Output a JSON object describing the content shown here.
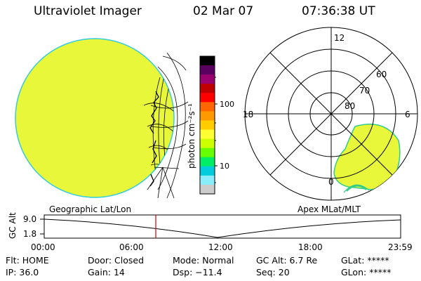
{
  "header": {
    "instrument": "Ultraviolet Imager",
    "date": "02 Mar 07",
    "time": "07:36:38 UT"
  },
  "colorbar": {
    "label": "photon cm⁻²s⁻¹",
    "ticks": [
      "100",
      "10"
    ],
    "colors": [
      "#000000",
      "#5a0060",
      "#9a0070",
      "#c00000",
      "#ff0000",
      "#ff6600",
      "#ff9900",
      "#ffcc00",
      "#ffff33",
      "#ccff00",
      "#66ff00",
      "#00ee66",
      "#00ccdd",
      "#88eeff",
      "#cccccc"
    ]
  },
  "polar_plot": {
    "labels": {
      "top": "12",
      "left": "18",
      "right": "6",
      "bottom": "0"
    },
    "lat_labels": [
      "60",
      "70",
      "80"
    ]
  },
  "panels": {
    "left_caption": "Geographic Lat/Lon",
    "right_caption": "Apex MLat/MLT"
  },
  "altitude_plot": {
    "axis_label": "GC Alt",
    "y_ticks": [
      "9.0",
      "1.8"
    ],
    "x_ticks": [
      "00:00",
      "06:00",
      "12:00",
      "18:00",
      "23:59"
    ]
  },
  "status": {
    "row1": [
      {
        "label": "Flt:",
        "value": "HOME"
      },
      {
        "label": "Door:",
        "value": "Closed"
      },
      {
        "label": "Mode:",
        "value": "Normal"
      },
      {
        "label": "GC Alt:",
        "value": "6.7 Re"
      },
      {
        "label": "GLat:",
        "value": "*****"
      }
    ],
    "row2": [
      {
        "label": "IP:",
        "value": "36.0"
      },
      {
        "label": "Gain:",
        "value": "14"
      },
      {
        "label": "Dsp:",
        "value": "−11.4"
      },
      {
        "label": "Seq:",
        "value": "20"
      },
      {
        "label": "GLon:",
        "value": "*****"
      }
    ]
  }
}
